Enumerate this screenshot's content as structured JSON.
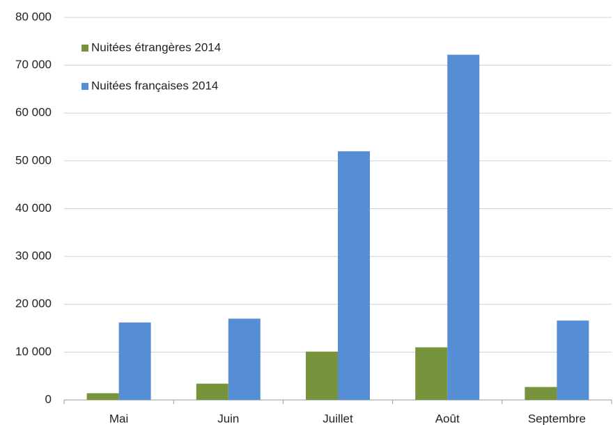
{
  "chart_data": {
    "type": "bar",
    "categories": [
      "Mai",
      "Juin",
      "Juillet",
      "Août",
      "Septembre"
    ],
    "series": [
      {
        "name": "Nuitées étrangères 2014",
        "color": "#77933c",
        "values": [
          1400,
          3400,
          10100,
          11000,
          2700
        ]
      },
      {
        "name": "Nuitées françaises 2014",
        "color": "#558ed5",
        "values": [
          16200,
          17000,
          52000,
          72200,
          16600
        ]
      }
    ],
    "ylim": [
      0,
      80000
    ],
    "yticks": [
      0,
      {
        "value": 10000,
        "label": "10 000"
      },
      {
        "value": 20000,
        "label": "20 000"
      },
      {
        "value": 30000,
        "label": "30 000"
      },
      {
        "value": 40000,
        "label": "40 000"
      },
      {
        "value": 50000,
        "label": "50 000"
      },
      {
        "value": 60000,
        "label": "60 000"
      },
      {
        "value": 70000,
        "label": "70 000"
      },
      {
        "value": 80000,
        "label": "80 000"
      }
    ],
    "grid": true,
    "legend": "top-left"
  }
}
